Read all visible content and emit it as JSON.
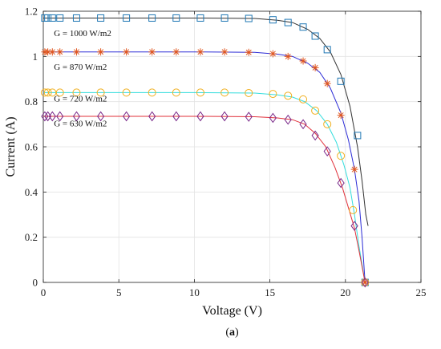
{
  "chart_data": {
    "type": "line",
    "title": "",
    "xlabel": "Voltage (V)",
    "ylabel": "Current (A)",
    "xlim": [
      0,
      25
    ],
    "ylim": [
      0,
      1.2
    ],
    "xticks": [
      0,
      5,
      10,
      15,
      20,
      25
    ],
    "yticks": [
      0,
      0.2,
      0.4,
      0.6,
      0.8,
      1,
      1.2
    ],
    "xtick_labels": [
      "0",
      "5",
      "10",
      "15",
      "20",
      "25"
    ],
    "ytick_labels": [
      "0",
      "0.2",
      "0.4",
      "0.6",
      "0.8",
      "1",
      "1.2"
    ],
    "grid": true,
    "caption_prefix": "(",
    "caption_letter": "a",
    "caption_suffix": ")",
    "annotations": [
      {
        "text": "G = 1000 W/m2",
        "x": 0.7,
        "y": 1.09
      },
      {
        "text": "G = 870 W/m2",
        "x": 0.7,
        "y": 0.94
      },
      {
        "text": "G = 720 W/m2",
        "x": 0.7,
        "y": 0.8
      },
      {
        "text": "G = 630 W/m2",
        "x": 0.7,
        "y": 0.69
      }
    ],
    "series": [
      {
        "line_color": "#333333",
        "marker": "square",
        "marker_color": "#1f77b4",
        "line": [
          [
            0,
            1.17
          ],
          [
            5,
            1.17
          ],
          [
            10,
            1.17
          ],
          [
            14,
            1.168
          ],
          [
            15.5,
            1.16
          ],
          [
            16.5,
            1.15
          ],
          [
            17.5,
            1.12
          ],
          [
            18.3,
            1.08
          ],
          [
            19,
            1.02
          ],
          [
            19.7,
            0.92
          ],
          [
            20.3,
            0.78
          ],
          [
            20.8,
            0.6
          ],
          [
            21.1,
            0.45
          ],
          [
            21.35,
            0.3
          ],
          [
            21.5,
            0.25
          ]
        ],
        "markers": [
          [
            0.1,
            1.17
          ],
          [
            0.3,
            1.17
          ],
          [
            0.6,
            1.17
          ],
          [
            1.1,
            1.17
          ],
          [
            2.2,
            1.17
          ],
          [
            3.8,
            1.17
          ],
          [
            5.5,
            1.17
          ],
          [
            7.2,
            1.17
          ],
          [
            8.8,
            1.17
          ],
          [
            10.4,
            1.17
          ],
          [
            12.0,
            1.17
          ],
          [
            13.6,
            1.168
          ],
          [
            15.2,
            1.162
          ],
          [
            16.2,
            1.15
          ],
          [
            17.2,
            1.13
          ],
          [
            18.0,
            1.09
          ],
          [
            18.8,
            1.03
          ],
          [
            19.7,
            0.89
          ],
          [
            20.8,
            0.65
          ],
          [
            21.3,
            0.0
          ]
        ]
      },
      {
        "line_color": "#2b2bd6",
        "marker": "asterisk",
        "marker_color": "#e0561f",
        "line": [
          [
            0,
            1.02
          ],
          [
            5,
            1.02
          ],
          [
            10,
            1.02
          ],
          [
            14,
            1.018
          ],
          [
            15.5,
            1.01
          ],
          [
            16.5,
            1.0
          ],
          [
            17.5,
            0.97
          ],
          [
            18.3,
            0.93
          ],
          [
            19,
            0.86
          ],
          [
            19.7,
            0.75
          ],
          [
            20.2,
            0.63
          ],
          [
            20.6,
            0.5
          ],
          [
            20.9,
            0.36
          ],
          [
            21.1,
            0.2
          ],
          [
            21.3,
            0.0
          ]
        ],
        "markers": [
          [
            0.1,
            1.02
          ],
          [
            0.3,
            1.02
          ],
          [
            0.6,
            1.02
          ],
          [
            1.1,
            1.02
          ],
          [
            2.2,
            1.02
          ],
          [
            3.8,
            1.02
          ],
          [
            5.5,
            1.02
          ],
          [
            7.2,
            1.02
          ],
          [
            8.8,
            1.02
          ],
          [
            10.4,
            1.02
          ],
          [
            12.0,
            1.02
          ],
          [
            13.6,
            1.018
          ],
          [
            15.2,
            1.012
          ],
          [
            16.2,
            1.0
          ],
          [
            17.2,
            0.98
          ],
          [
            18.0,
            0.95
          ],
          [
            18.8,
            0.88
          ],
          [
            19.7,
            0.74
          ],
          [
            20.6,
            0.5
          ],
          [
            21.3,
            0.0
          ]
        ]
      },
      {
        "line_color": "#33dddd",
        "marker": "circle",
        "marker_color": "#f0b020",
        "line": [
          [
            0,
            0.84
          ],
          [
            5,
            0.84
          ],
          [
            10,
            0.84
          ],
          [
            14,
            0.838
          ],
          [
            15.5,
            0.83
          ],
          [
            16.5,
            0.82
          ],
          [
            17.3,
            0.8
          ],
          [
            18.1,
            0.76
          ],
          [
            18.8,
            0.7
          ],
          [
            19.4,
            0.62
          ],
          [
            19.9,
            0.52
          ],
          [
            20.3,
            0.42
          ],
          [
            20.6,
            0.3
          ],
          [
            20.9,
            0.16
          ],
          [
            21.3,
            0.0
          ]
        ],
        "markers": [
          [
            0.1,
            0.84
          ],
          [
            0.3,
            0.84
          ],
          [
            0.6,
            0.84
          ],
          [
            1.1,
            0.84
          ],
          [
            2.2,
            0.84
          ],
          [
            3.8,
            0.84
          ],
          [
            5.5,
            0.84
          ],
          [
            7.2,
            0.84
          ],
          [
            8.8,
            0.84
          ],
          [
            10.4,
            0.84
          ],
          [
            12.0,
            0.84
          ],
          [
            13.6,
            0.838
          ],
          [
            15.2,
            0.834
          ],
          [
            16.2,
            0.826
          ],
          [
            17.2,
            0.81
          ],
          [
            18.0,
            0.76
          ],
          [
            18.8,
            0.7
          ],
          [
            19.7,
            0.56
          ],
          [
            20.5,
            0.32
          ],
          [
            21.3,
            0.0
          ]
        ]
      },
      {
        "line_color": "#e0303a",
        "marker": "diamond",
        "marker_color": "#7a2a8a",
        "line": [
          [
            0,
            0.735
          ],
          [
            5,
            0.735
          ],
          [
            10,
            0.735
          ],
          [
            14,
            0.733
          ],
          [
            15.5,
            0.728
          ],
          [
            16.5,
            0.72
          ],
          [
            17.3,
            0.7
          ],
          [
            18.0,
            0.66
          ],
          [
            18.7,
            0.6
          ],
          [
            19.3,
            0.51
          ],
          [
            19.8,
            0.42
          ],
          [
            20.2,
            0.33
          ],
          [
            20.6,
            0.24
          ],
          [
            20.9,
            0.14
          ],
          [
            21.3,
            0.0
          ]
        ],
        "markers": [
          [
            0.1,
            0.735
          ],
          [
            0.3,
            0.735
          ],
          [
            0.6,
            0.735
          ],
          [
            1.1,
            0.735
          ],
          [
            2.2,
            0.735
          ],
          [
            3.8,
            0.735
          ],
          [
            5.5,
            0.735
          ],
          [
            7.2,
            0.735
          ],
          [
            8.8,
            0.735
          ],
          [
            10.4,
            0.735
          ],
          [
            12.0,
            0.735
          ],
          [
            13.6,
            0.733
          ],
          [
            15.2,
            0.728
          ],
          [
            16.2,
            0.72
          ],
          [
            17.2,
            0.7
          ],
          [
            18.0,
            0.65
          ],
          [
            18.8,
            0.58
          ],
          [
            19.7,
            0.44
          ],
          [
            20.6,
            0.25
          ],
          [
            21.3,
            0.0
          ]
        ]
      }
    ]
  }
}
